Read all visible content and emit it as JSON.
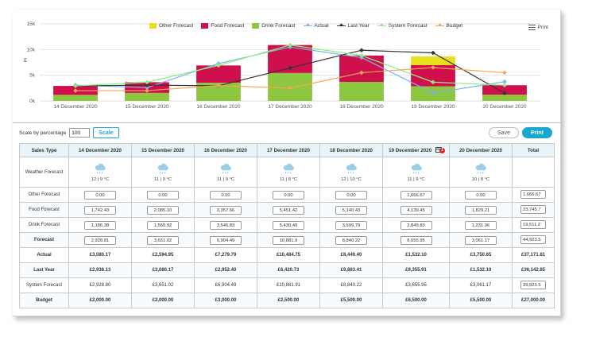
{
  "chart_data": {
    "type": "bar",
    "categories": [
      "14 December 2020",
      "15 December 2020",
      "16 December 2020",
      "17 December 2020",
      "18 December 2020",
      "19 December 2020",
      "20 December 2020"
    ],
    "y_ticks": [
      "0k",
      "5k",
      "10k",
      "15k"
    ],
    "y_unit_symbol": "£",
    "ylim": [
      0,
      15000
    ],
    "stacked": true,
    "series": [
      {
        "name": "Drink Forecast",
        "kind": "bar",
        "color": "#8dc63f",
        "values": [
          1186.38,
          1565.92,
          3546.83,
          5430.49,
          3699.79,
          2849.83,
          1231.96
        ]
      },
      {
        "name": "Food Forecast",
        "kind": "bar",
        "color": "#d0104c",
        "values": [
          1742.43,
          2085.1,
          3357.66,
          5451.42,
          5140.43,
          4139.45,
          1829.21
        ]
      },
      {
        "name": "Other Forecast",
        "kind": "bar",
        "color": "#e8e01c",
        "values": [
          0,
          0,
          0,
          0,
          0,
          1666.67,
          0
        ]
      },
      {
        "name": "Actual",
        "kind": "line",
        "color": "#7cb5e8",
        "values": [
          3080.17,
          2594.95,
          7279.79,
          10484.75,
          8449.4,
          1532.1,
          3750.65
        ]
      },
      {
        "name": "Last Year",
        "kind": "line",
        "color": "#333333",
        "values": [
          2938.13,
          3080.17,
          2952.4,
          6420.73,
          9863.41,
          9355.91,
          1532.1
        ]
      },
      {
        "name": "System Forecast",
        "kind": "line",
        "color": "#90ee7e",
        "values": [
          2928.8,
          3651.02,
          6904.49,
          10881.91,
          8840.22,
          3655.95,
          3061.17
        ]
      },
      {
        "name": "Budget",
        "kind": "line",
        "color": "#f7a35c",
        "values": [
          2000,
          2000,
          3000,
          2500,
          5500,
          6500,
          5500
        ]
      }
    ],
    "legend_order": [
      "Other Forecast",
      "Food Forecast",
      "Drink Forecast",
      "Actual",
      "Last Year",
      "System Forecast",
      "Budget"
    ],
    "legend_placement": "top-center",
    "grid": true
  },
  "chart_menu": {
    "print_label": "Print"
  },
  "controls": {
    "scale_label": "Scale by percentage",
    "scale_value": "100",
    "scale_button": "Scale",
    "save_button": "Save",
    "print_button": "Print"
  },
  "table": {
    "headers": [
      "Sales Type",
      "14 December 2020",
      "15 December 2020",
      "16 December 2020",
      "17 December 2020",
      "18 December 2020",
      "19 December 2020",
      "20 December 2020",
      "Total"
    ],
    "badge_count": "1",
    "weather": {
      "label": "Weather Forecast",
      "days": [
        "12 | 9 °C",
        "11 | 9 °C",
        "11 | 9 °C",
        "11 | 8 °C",
        "12 | 10 °C",
        "11 | 9 °C",
        "10 | 8 °C"
      ]
    },
    "rows": [
      {
        "label": "Other Forecast",
        "style": "input",
        "values": [
          "0.00",
          "0.00",
          "0.00",
          "0.00",
          "0.00",
          "1,666.67",
          "0.00"
        ],
        "total": "1,666.67"
      },
      {
        "label": "Food Forecast",
        "style": "input",
        "values": [
          "1,742.43",
          "2,085.10",
          "3,357.66",
          "5,451.42",
          "5,140.43",
          "4,139.45",
          "1,829.21"
        ],
        "total": "23,745.7"
      },
      {
        "label": "Drink Forecast",
        "style": "input",
        "values": [
          "1,186.38",
          "1,565.92",
          "3,546.83",
          "5,430.49",
          "3,699.79",
          "2,849.83",
          "1,231.96"
        ],
        "total": "19,511.2"
      },
      {
        "label": "Forecast",
        "style": "input-bold",
        "values": [
          "2,928.81",
          "3,651.02",
          "6,904.49",
          "10,881.9",
          "8,840.22",
          "8,655.95",
          "3,061.17"
        ],
        "total": "44,923.5"
      },
      {
        "label": "Actual",
        "style": "bold",
        "values": [
          "£3,080.17",
          "£2,594.95",
          "£7,279.79",
          "£10,484.75",
          "£8,449.40",
          "£1,532.10",
          "£3,750.65"
        ],
        "total": "£37,171.81"
      },
      {
        "label": "Last Year",
        "style": "bold",
        "values": [
          "£2,938.13",
          "£3,080.17",
          "£2,952.40",
          "£6,420.73",
          "£9,863.41",
          "£9,355.91",
          "£1,532.10"
        ],
        "total": "£36,142.85"
      },
      {
        "label": "System Forecast",
        "style": "plain",
        "values": [
          "£2,928.80",
          "£3,651.02",
          "£6,904.49",
          "£10,881.91",
          "£8,840.22",
          "£3,655.95",
          "£3,061.17"
        ],
        "total": "39,923.5"
      },
      {
        "label": "Budget",
        "style": "bold",
        "values": [
          "£2,000.00",
          "£2,000.00",
          "£3,000.00",
          "£2,500.00",
          "£5,500.00",
          "£6,500.00",
          "£5,500.00"
        ],
        "total": "£27,000.00"
      }
    ]
  }
}
